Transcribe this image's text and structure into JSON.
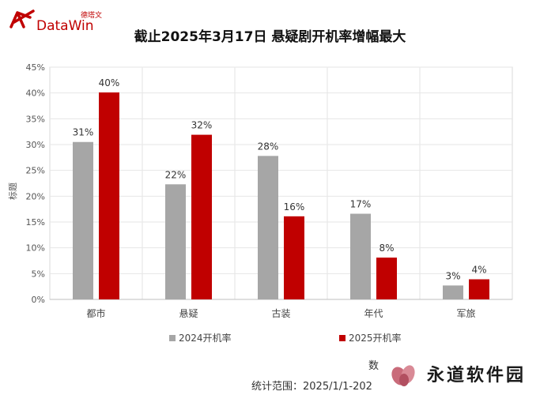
{
  "logo": {
    "cn": "德塔文",
    "en": "DataWin"
  },
  "chart_data": {
    "type": "bar",
    "title": "截止2025年3月17日 悬疑剧开机率增幅最大",
    "ylabel": "标题",
    "categories": [
      "都市",
      "悬疑",
      "古装",
      "年代",
      "军旅"
    ],
    "series": [
      {
        "name": "2024开机率",
        "values": [
          31,
          22,
          28,
          17,
          3
        ],
        "color": "#a6a6a6"
      },
      {
        "name": "2025开机率",
        "values": [
          40,
          32,
          16,
          8,
          4
        ],
        "color": "#c00000"
      }
    ],
    "actual": [
      [
        30.5,
        22.3,
        27.8,
        16.6,
        2.7
      ],
      [
        40.1,
        31.9,
        16.1,
        8.1,
        3.9
      ]
    ],
    "yticks": [
      "0%",
      "5%",
      "10%",
      "15%",
      "20%",
      "25%",
      "30%",
      "35%",
      "40%",
      "45%"
    ],
    "ylim": [
      0,
      45
    ],
    "grid": true,
    "legend": "bottom"
  },
  "footer": {
    "data_label": "数",
    "range": "统计范围：2025/1/1-202"
  },
  "watermark": {
    "text": "永道软件园"
  }
}
